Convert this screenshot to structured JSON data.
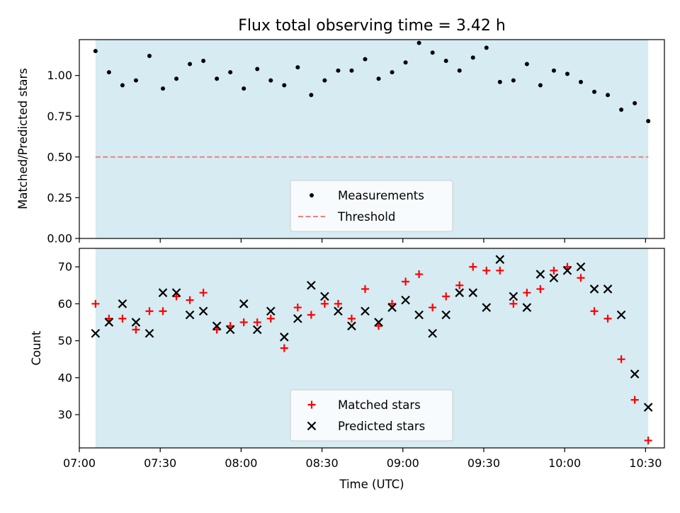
{
  "chart_data": [
    {
      "type": "scatter",
      "title": "Flux total observing time = 3.42 h",
      "xlabel": "",
      "ylabel": "Matched/Predicted stars",
      "xlim": [
        "07:00",
        "10:37"
      ],
      "ylim": [
        0,
        1.22
      ],
      "yticks": [
        "0.00",
        "0.25",
        "0.50",
        "0.75",
        "1.00"
      ],
      "grid": false,
      "legend_position": "lower center",
      "observing_window": [
        "07:06",
        "10:31"
      ],
      "series": [
        {
          "name": "Measurements",
          "marker": "dot",
          "color": "#000000",
          "x": [
            "07:06",
            "07:11",
            "07:16",
            "07:21",
            "07:26",
            "07:31",
            "07:36",
            "07:41",
            "07:46",
            "07:51",
            "07:56",
            "08:01",
            "08:06",
            "08:11",
            "08:16",
            "08:21",
            "08:26",
            "08:31",
            "08:36",
            "08:41",
            "08:46",
            "08:51",
            "08:56",
            "09:01",
            "09:06",
            "09:11",
            "09:16",
            "09:21",
            "09:26",
            "09:31",
            "09:36",
            "09:41",
            "09:46",
            "09:51",
            "09:56",
            "10:01",
            "10:06",
            "10:11",
            "10:16",
            "10:21",
            "10:26",
            "10:31"
          ],
          "y": [
            1.15,
            1.02,
            0.94,
            0.97,
            1.12,
            0.92,
            0.98,
            1.07,
            1.09,
            0.98,
            1.02,
            0.92,
            1.04,
            0.97,
            0.94,
            1.05,
            0.88,
            0.97,
            1.03,
            1.03,
            1.1,
            0.98,
            1.02,
            1.08,
            1.2,
            1.14,
            1.09,
            1.03,
            1.11,
            1.17,
            0.96,
            0.97,
            1.07,
            0.94,
            1.03,
            1.01,
            0.96,
            0.9,
            0.88,
            0.79,
            0.83,
            0.72
          ]
        },
        {
          "name": "Threshold",
          "style": "dashed",
          "color": "#f08080",
          "y": 0.5
        }
      ]
    },
    {
      "type": "scatter",
      "title": "",
      "xlabel": "Time (UTC)",
      "ylabel": "Count",
      "xlim": [
        "07:00",
        "10:37"
      ],
      "ylim": [
        21,
        75
      ],
      "yticks": [
        "30",
        "40",
        "50",
        "60",
        "70"
      ],
      "xticks": [
        "07:00",
        "07:30",
        "08:00",
        "08:30",
        "09:00",
        "09:30",
        "10:00",
        "10:30"
      ],
      "grid": false,
      "legend_position": "lower center",
      "observing_window": [
        "07:06",
        "10:31"
      ],
      "x": [
        "07:06",
        "07:11",
        "07:16",
        "07:21",
        "07:26",
        "07:31",
        "07:36",
        "07:41",
        "07:46",
        "07:51",
        "07:56",
        "08:01",
        "08:06",
        "08:11",
        "08:16",
        "08:21",
        "08:26",
        "08:31",
        "08:36",
        "08:41",
        "08:46",
        "08:51",
        "08:56",
        "09:01",
        "09:06",
        "09:11",
        "09:16",
        "09:21",
        "09:26",
        "09:31",
        "09:36",
        "09:41",
        "09:46",
        "09:51",
        "09:56",
        "10:01",
        "10:06",
        "10:11",
        "10:16",
        "10:21",
        "10:26",
        "10:31"
      ],
      "series": [
        {
          "name": "Matched stars",
          "marker": "plus",
          "color": "#ff0000",
          "values": [
            60,
            56,
            56,
            53,
            58,
            58,
            62,
            61,
            63,
            53,
            54,
            55,
            55,
            56,
            48,
            59,
            57,
            60,
            60,
            56,
            64,
            54,
            60,
            66,
            68,
            59,
            62,
            65,
            70,
            69,
            69,
            60,
            63,
            64,
            69,
            70,
            67,
            58,
            56,
            45,
            34,
            23
          ]
        },
        {
          "name": "Predicted stars",
          "marker": "x",
          "color": "#000000",
          "values": [
            52,
            55,
            60,
            55,
            52,
            63,
            63,
            57,
            58,
            54,
            53,
            60,
            53,
            58,
            51,
            56,
            65,
            62,
            58,
            54,
            58,
            55,
            59,
            61,
            57,
            52,
            57,
            63,
            63,
            59,
            72,
            62,
            59,
            68,
            67,
            69,
            70,
            64,
            64,
            57,
            41,
            32
          ]
        }
      ]
    }
  ]
}
